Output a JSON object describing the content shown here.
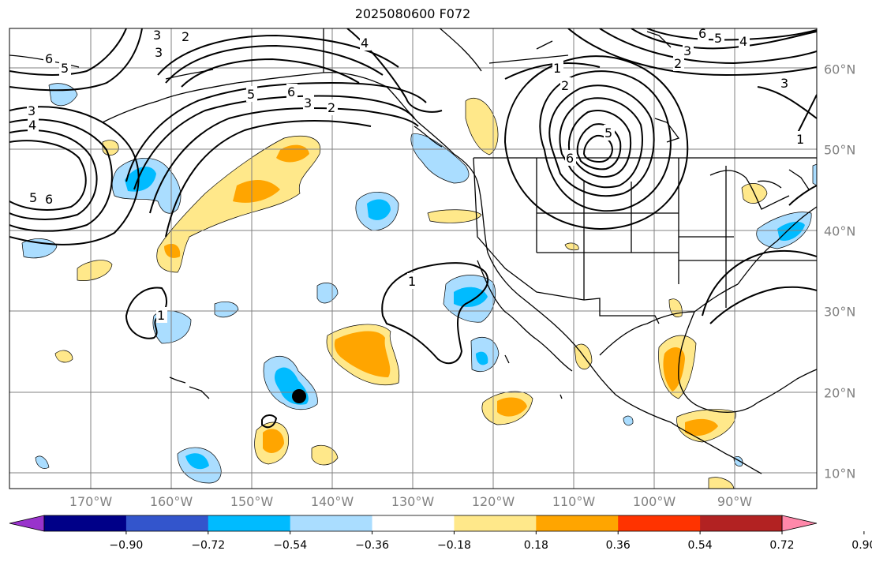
{
  "title": "2025080600 F072",
  "lon_labels": [
    "170°W",
    "160°W",
    "150°W",
    "140°W",
    "130°W",
    "120°W",
    "110°W",
    "100°W",
    "90°W"
  ],
  "lat_labels": [
    "60°N",
    "50°N",
    "40°N",
    "30°N",
    "20°N",
    "10°N"
  ],
  "colorbar": {
    "tick_labels": [
      "−0.90",
      "−0.72",
      "−0.54",
      "−0.36",
      "−0.18",
      "0.18",
      "0.36",
      "0.54",
      "0.72",
      "0.90"
    ],
    "colors": [
      "#9933cc",
      "#000088",
      "#3355cc",
      "#00bbff",
      "#aaddff",
      "#ffffff",
      "#ffe88a",
      "#ffa500",
      "#ff3300",
      "#b22222",
      "#ff88aa"
    ]
  },
  "contour_labels": [
    "2",
    "3",
    "4",
    "5",
    "6",
    "1"
  ],
  "colors": {
    "coast": "#000000",
    "grid": "#808080",
    "label": "#808080"
  }
}
